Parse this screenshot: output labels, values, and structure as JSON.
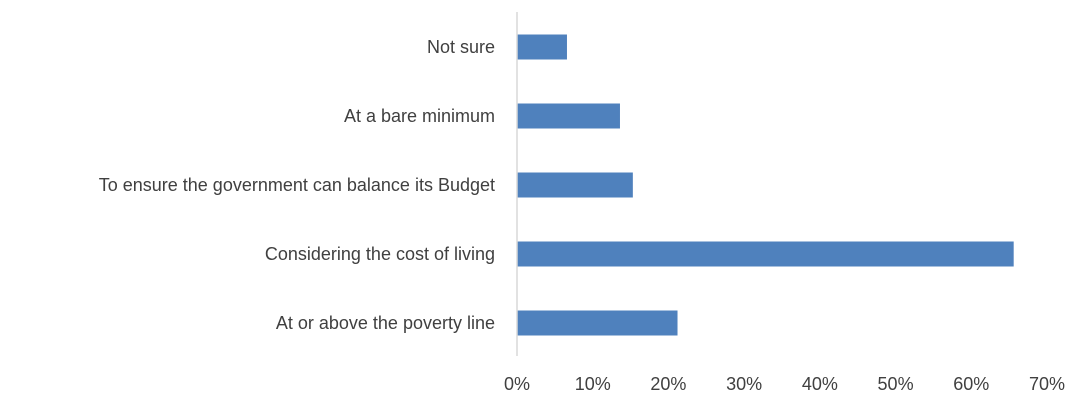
{
  "chart_data": {
    "type": "bar",
    "orientation": "horizontal",
    "categories": [
      "Not sure",
      "At a bare minimum",
      "To ensure the government can balance its Budget",
      "Considering the cost of living",
      "At or above the poverty line"
    ],
    "values": [
      6.6,
      13.6,
      15.3,
      65.6,
      21.2
    ],
    "value_unit": "%",
    "xlim": [
      0,
      70
    ],
    "x_ticks": [
      "0%",
      "10%",
      "20%",
      "30%",
      "40%",
      "50%",
      "60%",
      "70%"
    ],
    "title": "",
    "xlabel": "",
    "ylabel": "",
    "grid": false,
    "legend": "none",
    "colors": {
      "bar": "#4f81bd",
      "axis": "#d9d9d9",
      "text": "#404040"
    }
  }
}
